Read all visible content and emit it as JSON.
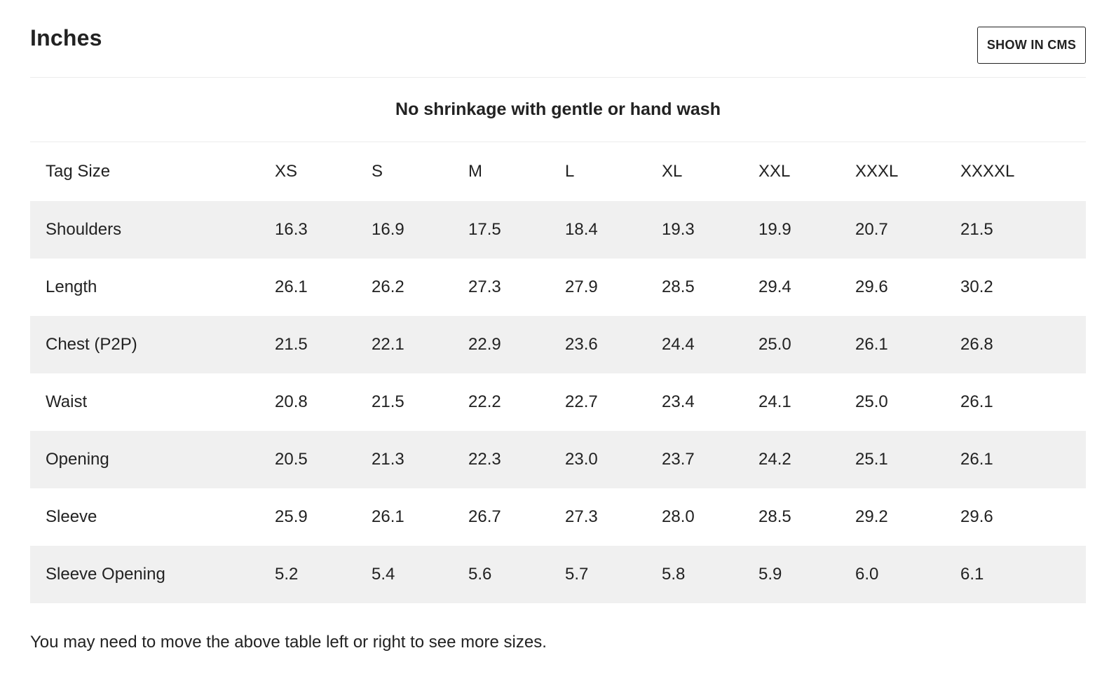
{
  "section": {
    "title": "Inches",
    "cms_button_label": "SHOW IN CMS"
  },
  "note": "No shrinkage with gentle or hand wash",
  "table": {
    "header_label": "Tag Size",
    "sizes": [
      "XS",
      "S",
      "M",
      "L",
      "XL",
      "XXL",
      "XXXL",
      "XXXXL"
    ],
    "rows": [
      {
        "label": "Shoulders",
        "values": [
          "16.3",
          "16.9",
          "17.5",
          "18.4",
          "19.3",
          "19.9",
          "20.7",
          "21.5"
        ]
      },
      {
        "label": "Length",
        "values": [
          "26.1",
          "26.2",
          "27.3",
          "27.9",
          "28.5",
          "29.4",
          "29.6",
          "30.2"
        ]
      },
      {
        "label": "Chest (P2P)",
        "values": [
          "21.5",
          "22.1",
          "22.9",
          "23.6",
          "24.4",
          "25.0",
          "26.1",
          "26.8"
        ]
      },
      {
        "label": "Waist",
        "values": [
          "20.8",
          "21.5",
          "22.2",
          "22.7",
          "23.4",
          "24.1",
          "25.0",
          "26.1"
        ]
      },
      {
        "label": "Opening",
        "values": [
          "20.5",
          "21.3",
          "22.3",
          "23.0",
          "23.7",
          "24.2",
          "25.1",
          "26.1"
        ]
      },
      {
        "label": "Sleeve",
        "values": [
          "25.9",
          "26.1",
          "26.7",
          "27.3",
          "28.0",
          "28.5",
          "29.2",
          "29.6"
        ]
      },
      {
        "label": "Sleeve Opening",
        "values": [
          "5.2",
          "5.4",
          "5.6",
          "5.7",
          "5.8",
          "5.9",
          "6.0",
          "6.1"
        ]
      }
    ]
  },
  "footer_note": "You may need to move the above table left or right to see more sizes.",
  "colors": {
    "text": "#222222",
    "shaded_row": "#f0f0f0",
    "divider": "#ececec",
    "background": "#ffffff"
  }
}
